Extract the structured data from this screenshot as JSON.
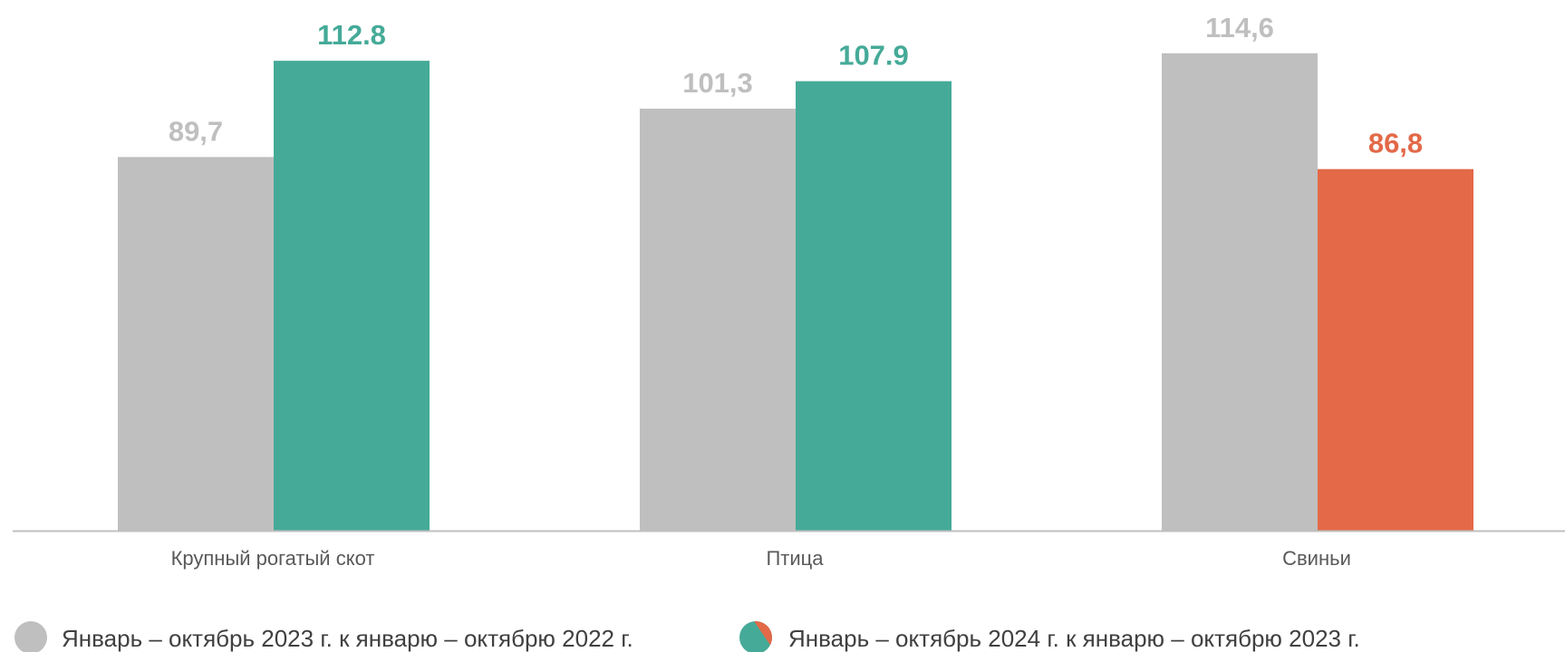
{
  "chart_data": {
    "type": "bar",
    "categories": [
      "Крупный рогатый скот",
      "Птица",
      "Свиньи"
    ],
    "series": [
      {
        "name": "Январь – октябрь 2023 г. к январю – октябрю 2022 г.",
        "values": [
          89.7,
          101.3,
          114.6
        ],
        "labels": [
          "89,7",
          "101,3",
          "114,6"
        ],
        "colors": [
          "#bfbfbf",
          "#bfbfbf",
          "#bfbfbf"
        ],
        "label_colors": [
          "#bfbfbf",
          "#bfbfbf",
          "#bfbfbf"
        ]
      },
      {
        "name": "Январь – октябрь 2024 г. к январю – октябрю 2023 г.",
        "values": [
          112.8,
          107.9,
          86.8
        ],
        "labels": [
          "112.8",
          "107.9",
          "86,8"
        ],
        "colors": [
          "#45aa98",
          "#45aa98",
          "#e36948"
        ],
        "label_colors": [
          "#45aa98",
          "#45aa98",
          "#e36948"
        ]
      }
    ],
    "ylim": [
      0,
      130
    ],
    "grid": false,
    "legend_position": "bottom",
    "legend_icon_colors": {
      "series_1": "#bfbfbf",
      "series_2": [
        "#45aa98",
        "#e36948"
      ]
    },
    "axis_color": "#bfbfbf"
  }
}
